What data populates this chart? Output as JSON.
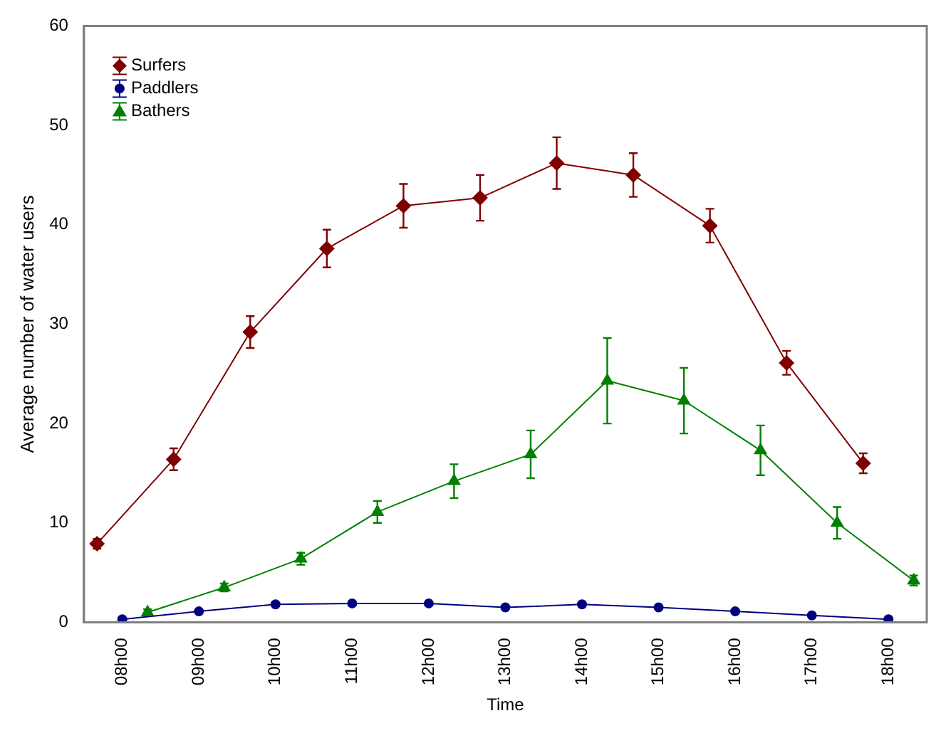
{
  "chart_data": {
    "type": "line",
    "xlabel": "Time",
    "ylabel": "Average number of water users",
    "categories": [
      "08h00",
      "09h00",
      "10h00",
      "11h00",
      "12h00",
      "13h00",
      "14h00",
      "15h00",
      "16h00",
      "17h00",
      "18h00"
    ],
    "ylim": [
      0,
      60
    ],
    "yticks": [
      0,
      10,
      20,
      30,
      40,
      50,
      60
    ],
    "grid": false,
    "legend": "top left",
    "series": [
      {
        "name": "Surfers",
        "color": "#800000",
        "marker": "diamond",
        "values": [
          7.9,
          16.4,
          29.2,
          37.6,
          41.9,
          42.7,
          46.2,
          45.0,
          39.9,
          26.1,
          16.0
        ],
        "errors": [
          0.5,
          1.1,
          1.6,
          1.9,
          2.2,
          2.3,
          2.6,
          2.2,
          1.7,
          1.2,
          1.0
        ]
      },
      {
        "name": "Paddlers",
        "color": "#000080",
        "marker": "circle",
        "values": [
          0.3,
          1.1,
          1.8,
          1.9,
          1.9,
          1.5,
          1.8,
          1.5,
          1.1,
          0.7,
          0.3
        ]
      },
      {
        "name": "Bathers",
        "color": "#008000",
        "marker": "triangle",
        "values": [
          1.0,
          3.5,
          6.4,
          11.1,
          14.2,
          16.9,
          24.3,
          22.3,
          17.3,
          10.0,
          4.2
        ],
        "errors": [
          0.3,
          0.4,
          0.6,
          1.1,
          1.7,
          2.4,
          4.3,
          3.3,
          2.5,
          1.6,
          0.5
        ]
      }
    ]
  }
}
